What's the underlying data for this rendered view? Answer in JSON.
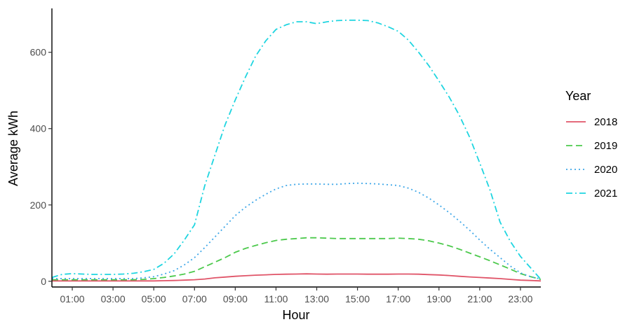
{
  "chart_data": {
    "type": "line",
    "xlabel": "Hour",
    "ylabel": "Average kWh",
    "x_ticks": [
      "01:00",
      "03:00",
      "05:00",
      "07:00",
      "09:00",
      "11:00",
      "13:00",
      "15:00",
      "17:00",
      "19:00",
      "21:00",
      "23:00"
    ],
    "y_ticks": [
      0,
      200,
      400,
      600
    ],
    "xlim": [
      0,
      24
    ],
    "ylim": [
      -15,
      715
    ],
    "grid": false,
    "legend": {
      "title": "Year",
      "position": "right",
      "entries": [
        "2018",
        "2019",
        "2020",
        "2021"
      ]
    },
    "x": [
      0,
      0.5,
      1,
      1.5,
      2,
      2.5,
      3,
      3.5,
      4,
      4.5,
      5,
      5.5,
      6,
      6.5,
      7,
      7.5,
      8,
      8.5,
      9,
      9.5,
      10,
      10.5,
      11,
      11.5,
      12,
      12.5,
      13,
      13.5,
      14,
      14.5,
      15,
      15.5,
      16,
      16.5,
      17,
      17.5,
      18,
      18.5,
      19,
      19.5,
      20,
      20.5,
      21,
      21.5,
      22,
      22.5,
      23,
      23.5,
      24
    ],
    "series": [
      {
        "name": "2018",
        "color": "#e05468",
        "dash": "solid",
        "values": [
          1,
          1,
          1,
          1,
          1,
          1,
          1,
          1,
          1,
          1,
          1,
          1.5,
          2,
          3,
          4,
          6,
          9,
          11,
          13,
          14.5,
          16,
          17,
          18,
          18.5,
          19,
          19.5,
          19,
          18.5,
          19,
          19,
          19,
          18.5,
          18.5,
          18.5,
          19,
          19,
          18.5,
          17.5,
          16.5,
          15,
          13,
          11.5,
          10,
          8.5,
          7,
          5,
          3,
          2,
          1
        ]
      },
      {
        "name": "2019",
        "color": "#4cc94c",
        "dash": "dashed",
        "values": [
          4,
          4,
          4,
          4,
          4,
          4,
          4,
          4,
          4,
          5,
          7,
          10,
          14,
          19,
          26,
          38,
          50,
          62,
          76,
          86,
          94,
          101,
          107,
          110,
          112,
          114,
          114,
          113,
          112,
          112,
          112,
          112,
          112,
          112,
          113,
          112,
          110,
          106,
          100,
          93,
          84,
          74,
          64,
          54,
          43,
          32,
          20,
          12,
          5
        ]
      },
      {
        "name": "2020",
        "color": "#3fa7e8",
        "dash": "dotted",
        "values": [
          7,
          7,
          7,
          7,
          7,
          7,
          7,
          7,
          7,
          9,
          12,
          19,
          28,
          43,
          62,
          88,
          116,
          144,
          172,
          194,
          212,
          228,
          242,
          251,
          254,
          255,
          255,
          254,
          254,
          256,
          257,
          256,
          255,
          253,
          251,
          244,
          233,
          218,
          200,
          180,
          158,
          134,
          108,
          84,
          62,
          40,
          22,
          12,
          6
        ]
      },
      {
        "name": "2021",
        "color": "#1fd5e0",
        "dash": "dashdot",
        "values": [
          10,
          18,
          20,
          19,
          18,
          18,
          18,
          19,
          21,
          25,
          31,
          47,
          72,
          108,
          148,
          250,
          330,
          410,
          475,
          535,
          590,
          630,
          660,
          672,
          680,
          680,
          675,
          680,
          683,
          684,
          684,
          683,
          677,
          667,
          655,
          632,
          600,
          565,
          525,
          483,
          435,
          378,
          310,
          240,
          155,
          105,
          65,
          35,
          5
        ]
      }
    ]
  }
}
